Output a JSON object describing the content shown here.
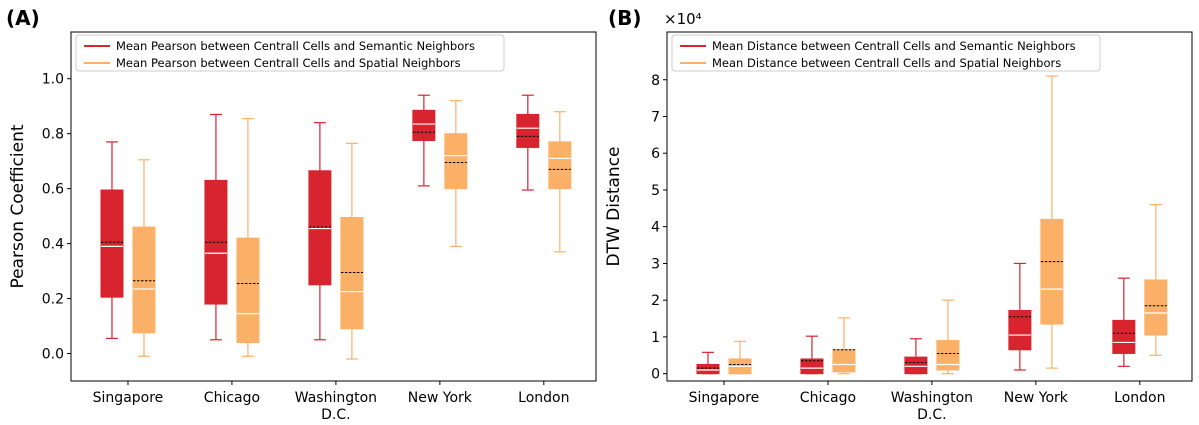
{
  "colors": {
    "semantic": "#d7242f",
    "spatial": "#fbb067",
    "median_line": "#ffffff",
    "mean_line": "#000000",
    "axis": "#000000"
  },
  "chart_data": [
    {
      "type": "box",
      "panel_label": "(A)",
      "title": "",
      "xlabel": "",
      "ylabel": "Pearson Coefficient",
      "ylim": [
        -0.1,
        1.17
      ],
      "yticks": [
        0.0,
        0.2,
        0.4,
        0.6,
        0.8,
        1.0
      ],
      "ytick_labels": [
        "0.0",
        "0.2",
        "0.4",
        "0.6",
        "0.8",
        "1.0"
      ],
      "exponent_label": "",
      "categories": [
        "Singapore",
        "Chicago",
        "Washington\nD.C.",
        "New York",
        "London"
      ],
      "grid": false,
      "legend": "top-left",
      "series": [
        {
          "name": "Mean Pearson between Centrall Cells and Semantic Neighbors",
          "color_key": "semantic",
          "boxes": [
            {
              "min": 0.055,
              "q1": 0.205,
              "median": 0.39,
              "mean": 0.405,
              "q3": 0.595,
              "max": 0.77
            },
            {
              "min": 0.05,
              "q1": 0.18,
              "median": 0.365,
              "mean": 0.405,
              "q3": 0.63,
              "max": 0.87
            },
            {
              "min": 0.05,
              "q1": 0.25,
              "median": 0.455,
              "mean": 0.46,
              "q3": 0.665,
              "max": 0.84
            },
            {
              "min": 0.61,
              "q1": 0.775,
              "median": 0.835,
              "mean": 0.805,
              "q3": 0.885,
              "max": 0.94
            },
            {
              "min": 0.595,
              "q1": 0.75,
              "median": 0.82,
              "mean": 0.79,
              "q3": 0.87,
              "max": 0.94
            }
          ]
        },
        {
          "name": "Mean Pearson between Centrall Cells and Spatial Neighbors",
          "color_key": "spatial",
          "boxes": [
            {
              "min": -0.01,
              "q1": 0.075,
              "median": 0.235,
              "mean": 0.265,
              "q3": 0.46,
              "max": 0.705
            },
            {
              "min": -0.01,
              "q1": 0.04,
              "median": 0.145,
              "mean": 0.255,
              "q3": 0.42,
              "max": 0.855
            },
            {
              "min": -0.02,
              "q1": 0.09,
              "median": 0.225,
              "mean": 0.295,
              "q3": 0.495,
              "max": 0.765
            },
            {
              "min": 0.39,
              "q1": 0.6,
              "median": 0.72,
              "mean": 0.695,
              "q3": 0.8,
              "max": 0.92
            },
            {
              "min": 0.37,
              "q1": 0.6,
              "median": 0.71,
              "mean": 0.67,
              "q3": 0.77,
              "max": 0.88
            }
          ]
        }
      ]
    },
    {
      "type": "box",
      "panel_label": "(B)",
      "title": "",
      "xlabel": "",
      "ylabel": "DTW Distance",
      "ylim": [
        -0.2,
        9.3
      ],
      "yticks": [
        0,
        1,
        2,
        3,
        4,
        5,
        6,
        7,
        8
      ],
      "ytick_labels": [
        "0",
        "1",
        "2",
        "3",
        "4",
        "5",
        "6",
        "7",
        "8"
      ],
      "exponent_label": "×10⁴",
      "categories": [
        "Singapore",
        "Chicago",
        "Washington\nD.C.",
        "New York",
        "London"
      ],
      "grid": false,
      "legend": "top-left",
      "series": [
        {
          "name": "Mean Distance between Centrall Cells and Semantic Neighbors",
          "color_key": "semantic",
          "boxes": [
            {
              "min": 0.0,
              "q1": 0.0,
              "median": 0.1,
              "mean": 0.15,
              "q3": 0.25,
              "max": 0.58
            },
            {
              "min": 0.0,
              "q1": 0.0,
              "median": 0.15,
              "mean": 0.35,
              "q3": 0.4,
              "max": 1.02
            },
            {
              "min": 0.0,
              "q1": 0.0,
              "median": 0.2,
              "mean": 0.3,
              "q3": 0.45,
              "max": 0.95
            },
            {
              "min": 0.1,
              "q1": 0.65,
              "median": 1.05,
              "mean": 1.55,
              "q3": 1.72,
              "max": 3.0
            },
            {
              "min": 0.2,
              "q1": 0.55,
              "median": 0.85,
              "mean": 1.1,
              "q3": 1.45,
              "max": 2.6
            }
          ]
        },
        {
          "name": "Mean Distance between Centrall Cells and Spatial Neighbors",
          "color_key": "spatial",
          "boxes": [
            {
              "min": 0.0,
              "q1": 0.0,
              "median": 0.2,
              "mean": 0.25,
              "q3": 0.4,
              "max": 0.88
            },
            {
              "min": 0.0,
              "q1": 0.05,
              "median": 0.25,
              "mean": 0.65,
              "q3": 0.65,
              "max": 1.52
            },
            {
              "min": 0.0,
              "q1": 0.1,
              "median": 0.25,
              "mean": 0.55,
              "q3": 0.9,
              "max": 2.0
            },
            {
              "min": 0.15,
              "q1": 1.35,
              "median": 2.3,
              "mean": 3.05,
              "q3": 4.2,
              "max": 8.1
            },
            {
              "min": 0.5,
              "q1": 1.05,
              "median": 1.65,
              "mean": 1.85,
              "q3": 2.55,
              "max": 4.6
            }
          ]
        }
      ]
    }
  ]
}
